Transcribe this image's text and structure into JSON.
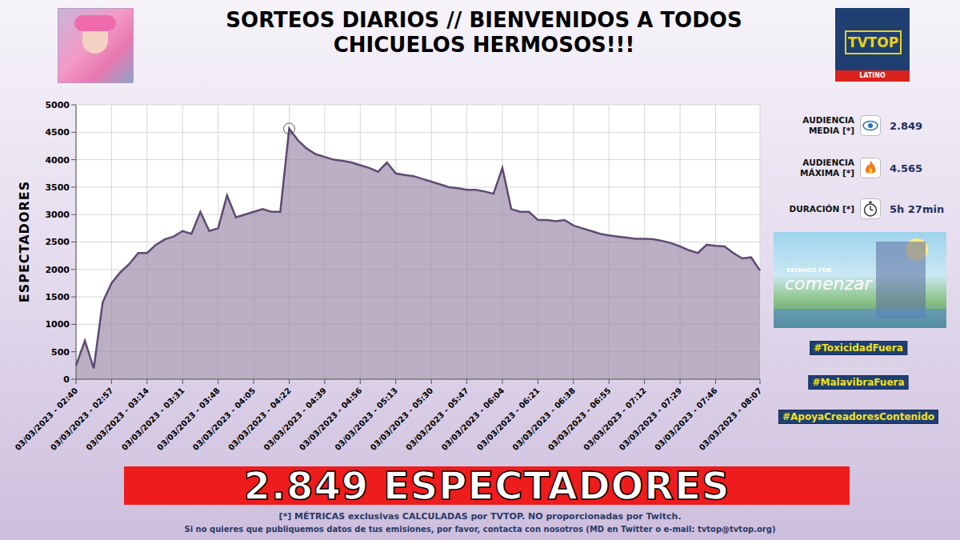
{
  "header": {
    "title_lines": [
      "SORTEOS DIARIOS // BIENVENIDOS A TODOS",
      "CHICUELOS HERMOSOS!!!"
    ],
    "logo": {
      "name": "TVTOP",
      "region": "LATINO"
    }
  },
  "chart_data": {
    "type": "area",
    "y_label": "ESPECTADORES",
    "color": "#5e4b73",
    "grid": true,
    "ylim": [
      0,
      5000
    ],
    "yticks": [
      0,
      500,
      1000,
      1500,
      2000,
      2500,
      3000,
      3500,
      4000,
      4500,
      5000
    ],
    "categories": [
      "03/03/2023 - 02:40",
      null,
      null,
      null,
      "03/03/2023 - 02:57",
      null,
      null,
      null,
      "03/03/2023 - 03:14",
      null,
      null,
      null,
      "03/03/2023 - 03:31",
      null,
      null,
      null,
      "03/03/2023 - 03:48",
      null,
      null,
      null,
      "03/03/2023 - 04:05",
      null,
      null,
      null,
      "03/03/2023 - 04:22",
      null,
      null,
      null,
      "03/03/2023 - 04:39",
      null,
      null,
      null,
      "03/03/2023 - 04:56",
      null,
      null,
      null,
      "03/03/2023 - 05:13",
      null,
      null,
      null,
      "03/03/2023 - 05:30",
      null,
      null,
      null,
      "03/03/2023 - 05:47",
      null,
      null,
      null,
      "03/03/2023 - 06:04",
      null,
      null,
      null,
      "03/03/2023 - 06:21",
      null,
      null,
      null,
      "03/03/2023 - 06:38",
      null,
      null,
      null,
      "03/03/2023 - 06:55",
      null,
      null,
      null,
      "03/03/2023 - 07:12",
      null,
      null,
      null,
      "03/03/2023 - 07:29",
      null,
      null,
      null,
      "03/03/2023 - 07:46",
      null,
      null,
      null,
      null,
      "03/03/2023 - 08:07"
    ],
    "values": [
      250,
      700,
      200,
      1400,
      1750,
      1950,
      2100,
      2300,
      2300,
      2450,
      2550,
      2600,
      2700,
      2650,
      3050,
      2700,
      2750,
      3350,
      2950,
      3000,
      3050,
      3100,
      3050,
      3050,
      4565,
      4350,
      4200,
      4100,
      4050,
      4000,
      3980,
      3950,
      3900,
      3850,
      3780,
      3950,
      3750,
      3720,
      3700,
      3650,
      3600,
      3550,
      3500,
      3480,
      3450,
      3450,
      3420,
      3380,
      3850,
      3100,
      3050,
      3050,
      2900,
      2900,
      2880,
      2900,
      2800,
      2750,
      2700,
      2650,
      2620,
      2600,
      2580,
      2560,
      2560,
      2550,
      2520,
      2480,
      2420,
      2350,
      2300,
      2450,
      2430,
      2420,
      2300,
      2200,
      2220,
      1980
    ]
  },
  "stats": [
    {
      "label": "AUDIENCIA MEDIA [*]",
      "value": "2.849"
    },
    {
      "label": "AUDIENCIA MÁXIMA [*]",
      "value": "4.565"
    },
    {
      "label": "DURACIÓN [*]",
      "value": "5h 27min"
    }
  ],
  "thumbnail": [
    "ESTAMOS POR",
    "comenzar"
  ],
  "hashtags": [
    "#ToxicidadFuera",
    "#MalavibraFuera",
    "#ApoyaCreadoresContenido"
  ],
  "banner": "2.849 ESPECTADORES",
  "footer": [
    "[*] MÉTRICAS exclusivas CALCULADAS por TVTOP. NO proporcionadas por Twitch.",
    "Si no quieres que publiquemos datos de tus emisiones, por favor, contacta con nosotros (MD en Twitter o e-mail: tvtop@tvtop.org)"
  ]
}
